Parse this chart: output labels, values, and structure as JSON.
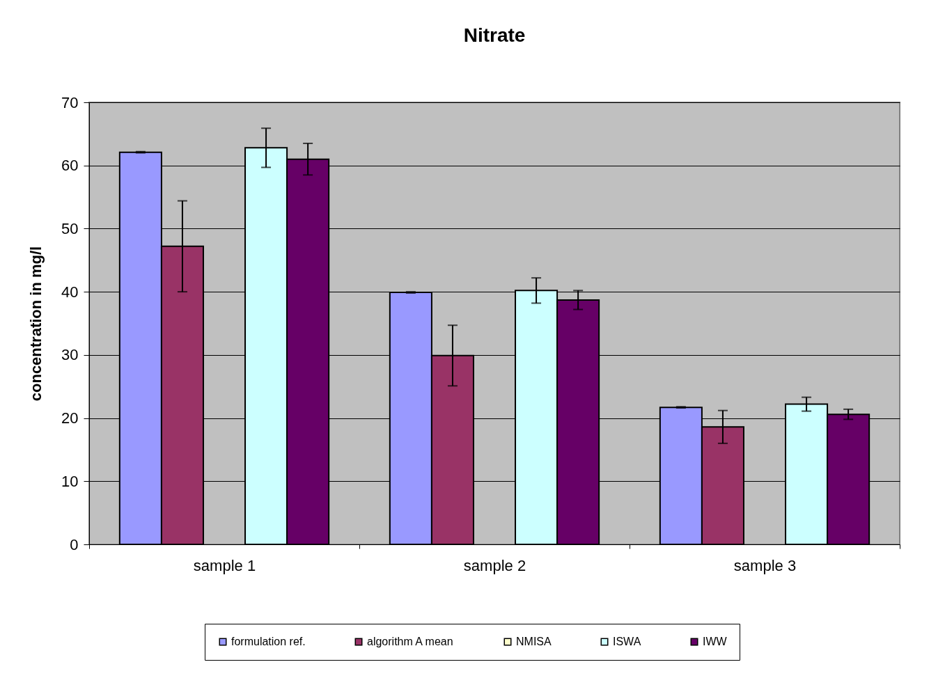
{
  "chart_data": {
    "type": "bar",
    "title": "Nitrate",
    "ylabel": "concentration in mg/l",
    "categories": [
      "sample 1",
      "sample 2",
      "sample 3"
    ],
    "series": [
      {
        "name": "formulation ref.",
        "color": "#9999ff",
        "values": [
          62.1,
          39.9,
          21.7
        ],
        "errors": [
          0.1,
          0.1,
          0.1
        ]
      },
      {
        "name": "algorithm A mean",
        "color": "#993366",
        "values": [
          47.2,
          29.9,
          18.6
        ],
        "errors": [
          7.2,
          4.8,
          2.6
        ]
      },
      {
        "name": "NMISA",
        "color": "#ffffcc",
        "values": [
          null,
          null,
          null
        ]
      },
      {
        "name": "ISWA",
        "color": "#ccffff",
        "values": [
          62.8,
          40.2,
          22.2
        ],
        "errors": [
          3.1,
          2.0,
          1.1
        ]
      },
      {
        "name": "IWW",
        "color": "#660066",
        "values": [
          61.0,
          38.7,
          20.6
        ],
        "errors": [
          2.5,
          1.5,
          0.8
        ]
      }
    ],
    "ylim": [
      0,
      70
    ],
    "yticks": [
      0,
      10,
      20,
      30,
      40,
      50,
      60,
      70
    ],
    "grid": "y",
    "legend": "bottom"
  }
}
